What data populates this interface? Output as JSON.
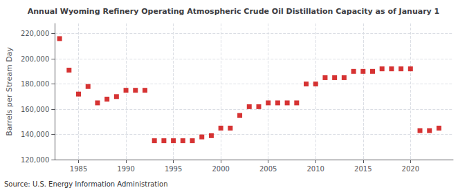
{
  "chart_data": {
    "type": "scatter",
    "title": "Annual Wyoming Refinery Operating Atmospheric Crude Oil Distillation Capacity as of January 1",
    "ylabel": "Barrels per Stream Day",
    "annotations": [
      "Source: U.S. Energy Information Administration"
    ],
    "x": [
      1983,
      1984,
      1985,
      1986,
      1987,
      1988,
      1989,
      1990,
      1991,
      1992,
      1993,
      1994,
      1995,
      1996,
      1997,
      1998,
      1999,
      2000,
      2001,
      2002,
      2003,
      2004,
      2005,
      2006,
      2007,
      2008,
      2009,
      2010,
      2011,
      2012,
      2013,
      2014,
      2015,
      2016,
      2017,
      2018,
      2019,
      2020,
      2021,
      2022,
      2023
    ],
    "values": [
      216000,
      191000,
      172000,
      178000,
      165000,
      168000,
      170000,
      175000,
      175000,
      175000,
      135000,
      135000,
      135000,
      135000,
      135000,
      138000,
      139000,
      145000,
      145000,
      155000,
      162000,
      162000,
      165000,
      165000,
      165000,
      165000,
      180000,
      180000,
      185000,
      185000,
      185000,
      190000,
      190000,
      190000,
      192000,
      192000,
      192000,
      192000,
      143000,
      143000,
      145000
    ],
    "color": "#cc0000",
    "marker": "square",
    "xlim": [
      1982.5,
      2024.5
    ],
    "xticks": [
      1985,
      1990,
      1995,
      2000,
      2005,
      2010,
      2015,
      2020
    ],
    "ylim": [
      120000,
      228000
    ],
    "yticks": [
      {
        "value": 120000,
        "label": "120,000"
      },
      {
        "value": 140000,
        "label": "140,000"
      },
      {
        "value": 160000,
        "label": "160,000"
      },
      {
        "value": 180000,
        "label": "180,000"
      },
      {
        "value": 200000,
        "label": "200,000"
      },
      {
        "value": 220000,
        "label": "220,000"
      }
    ],
    "grid": true
  }
}
